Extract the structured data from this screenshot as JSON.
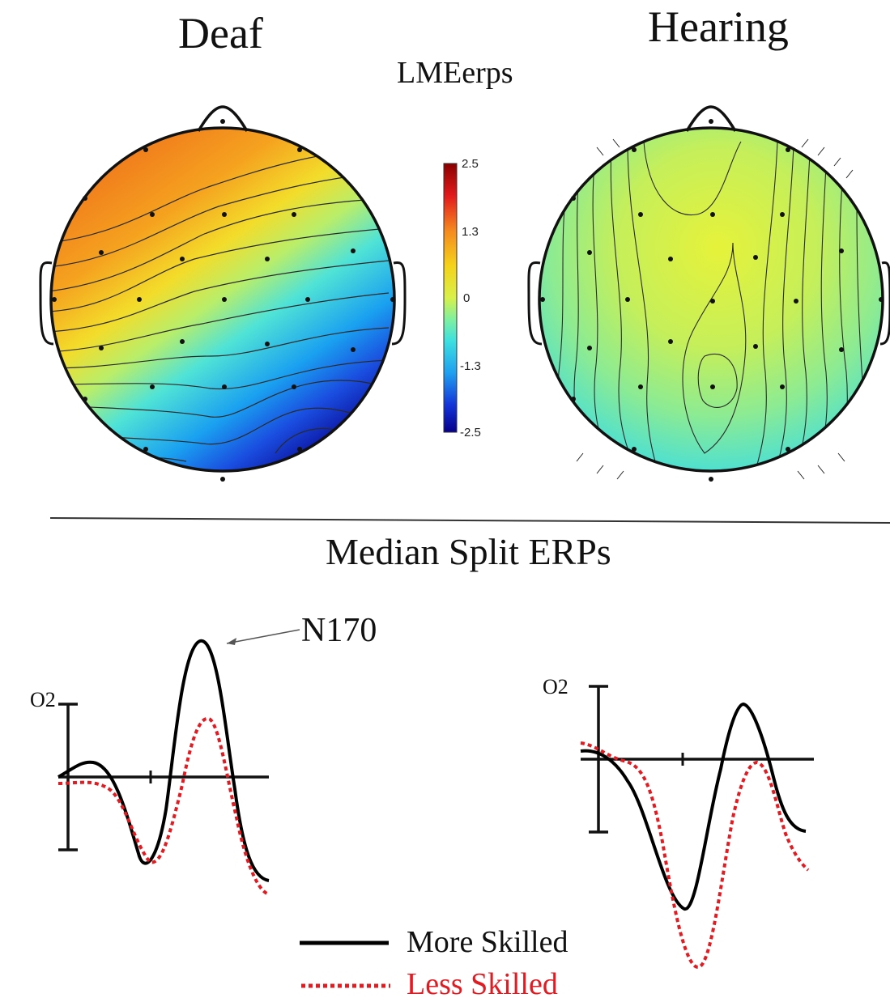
{
  "titles": {
    "deaf": "Deaf",
    "hearing": "Hearing",
    "map_label": "LMEerps",
    "section": "Median Split ERPs"
  },
  "colorbar": {
    "ticks": [
      "2.5",
      "1.3",
      "0",
      "-1.3",
      "-2.5"
    ],
    "colors": [
      "#8b0000",
      "#e21a1c",
      "#f58a1f",
      "#f5d21a",
      "#d9f04a",
      "#7ff0a0",
      "#3de0e0",
      "#1f9ff0",
      "#1433d8",
      "#07008a"
    ]
  },
  "erp": {
    "electrode_left": "O2",
    "electrode_right": "O2",
    "annotation": "N170"
  },
  "legend": {
    "more": "More Skilled",
    "less": "Less Skilled",
    "more_color": "#000000",
    "less_color": "#e11b22"
  }
}
